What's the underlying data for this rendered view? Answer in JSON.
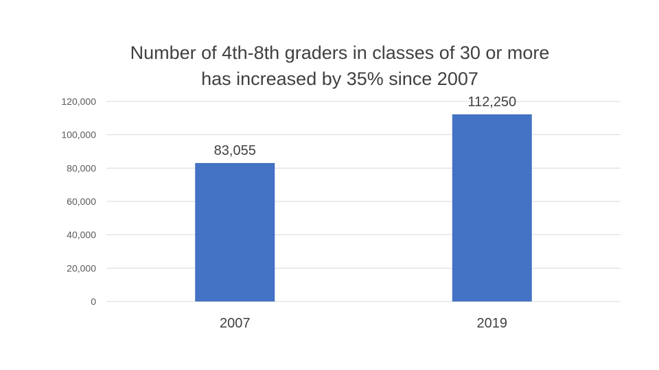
{
  "chart_data": {
    "type": "bar",
    "title_lines": [
      "Number of 4th-8th graders in classes of 30 or more",
      "has increased by 35% since 2007"
    ],
    "categories": [
      "2007",
      "2019"
    ],
    "values": [
      83055,
      112250
    ],
    "data_labels": [
      "83,055",
      "112,250"
    ],
    "xlabel": "",
    "ylabel": "",
    "ylim": [
      0,
      120000
    ],
    "y_ticks": [
      0,
      20000,
      40000,
      60000,
      80000,
      100000,
      120000
    ],
    "y_tick_labels": [
      "0",
      "20,000",
      "40,000",
      "60,000",
      "80,000",
      "100,000",
      "120,000"
    ],
    "grid": true,
    "legend": "none",
    "colors": {
      "bar": "#4472C4",
      "grid": "#D9D9D9"
    }
  }
}
